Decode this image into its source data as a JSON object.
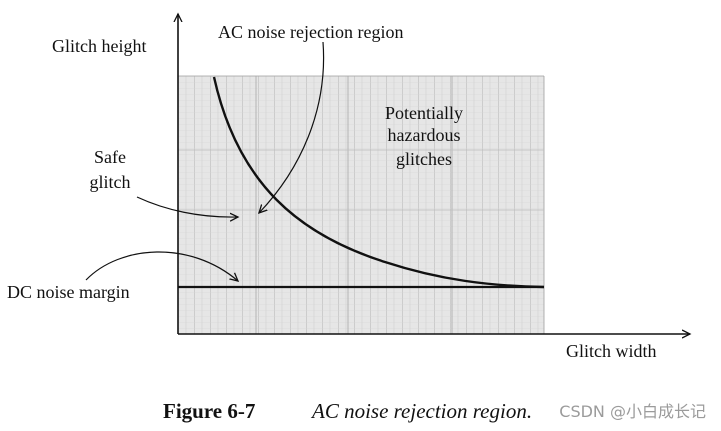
{
  "axes": {
    "y_label": "Glitch height",
    "x_label": "Glitch width"
  },
  "regions": {
    "ac_title": "AC noise rejection region",
    "hazard_lines": [
      "Potentially",
      "hazardous",
      "glitches"
    ],
    "safe_lines": [
      "Safe",
      "glitch"
    ],
    "dc_margin": "DC noise margin"
  },
  "caption": {
    "number": "Figure 6-7",
    "title": "AC noise rejection region."
  },
  "watermark": "CSDN @小白成长记",
  "colors": {
    "ink": "#111111",
    "grid": "#b5b5b5",
    "shade": "#e2e2e2"
  }
}
